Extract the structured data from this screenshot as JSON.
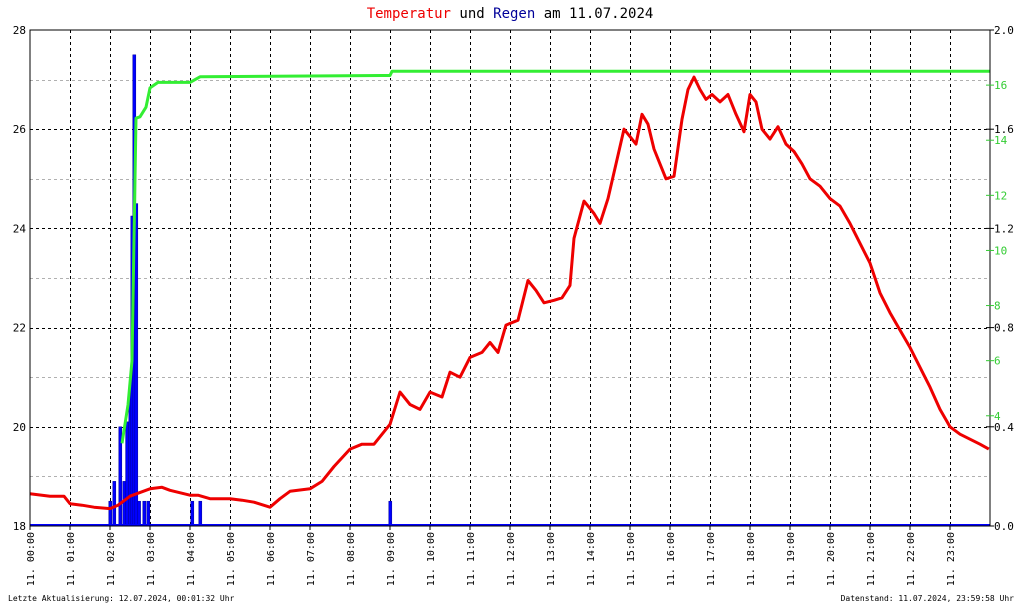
{
  "chart_data": {
    "type": "line",
    "title": {
      "part1": "Temperatur",
      "part2": " und ",
      "part3": "Regen",
      "part4": " am 11.07.2024",
      "color1": "#ee0000",
      "color3": "#000099"
    },
    "x_tick_labels": [
      "11. 00:00",
      "11. 01:00",
      "11. 02:00",
      "11. 03:00",
      "11. 04:00",
      "11. 05:00",
      "11. 06:00",
      "11. 07:00",
      "11. 08:00",
      "11. 09:00",
      "11. 10:00",
      "11. 11:00",
      "11. 12:00",
      "11. 13:00",
      "11. 14:00",
      "11. 15:00",
      "11. 16:00",
      "11. 17:00",
      "11. 18:00",
      "11. 19:00",
      "11. 20:00",
      "11. 21:00",
      "11. 22:00",
      "11. 23:00"
    ],
    "xlim": [
      0,
      24
    ],
    "left_axis": {
      "ylim": [
        18,
        28
      ],
      "ticks": [
        18,
        20,
        22,
        24,
        26,
        28
      ]
    },
    "right_axis_rain": {
      "ylim": [
        0,
        2.0
      ],
      "tick_labels": [
        "0.0",
        "0.4",
        "0.8",
        "1.2",
        "1.6",
        "2.0"
      ]
    },
    "right_axis_sum": {
      "ylim": [
        0,
        18
      ],
      "ticks": [
        4,
        6,
        8,
        10,
        12,
        14,
        16
      ],
      "color": "#33cc33"
    },
    "series": [
      {
        "color": "#ee0000",
        "axis": "left",
        "kind": "line",
        "points": [
          [
            0,
            18.65
          ],
          [
            0.5,
            18.6
          ],
          [
            0.85,
            18.6
          ],
          [
            1,
            18.45
          ],
          [
            1.3,
            18.42
          ],
          [
            1.6,
            18.38
          ],
          [
            2,
            18.35
          ],
          [
            2.2,
            18.42
          ],
          [
            2.5,
            18.6
          ],
          [
            3,
            18.75
          ],
          [
            3.3,
            18.78
          ],
          [
            3.5,
            18.72
          ],
          [
            4,
            18.62
          ],
          [
            4.2,
            18.62
          ],
          [
            4.5,
            18.55
          ],
          [
            5,
            18.55
          ],
          [
            5.3,
            18.52
          ],
          [
            5.6,
            18.48
          ],
          [
            6,
            18.38
          ],
          [
            6.25,
            18.55
          ],
          [
            6.5,
            18.7
          ],
          [
            7,
            18.75
          ],
          [
            7.3,
            18.9
          ],
          [
            7.6,
            19.2
          ],
          [
            8,
            19.55
          ],
          [
            8.3,
            19.65
          ],
          [
            8.6,
            19.65
          ],
          [
            9,
            20.05
          ],
          [
            9.25,
            20.7
          ],
          [
            9.5,
            20.45
          ],
          [
            9.75,
            20.35
          ],
          [
            10,
            20.7
          ],
          [
            10.3,
            20.6
          ],
          [
            10.5,
            21.1
          ],
          [
            10.75,
            21.0
          ],
          [
            11,
            21.4
          ],
          [
            11.3,
            21.5
          ],
          [
            11.5,
            21.7
          ],
          [
            11.7,
            21.5
          ],
          [
            11.9,
            22.05
          ],
          [
            12.2,
            22.15
          ],
          [
            12.45,
            22.95
          ],
          [
            12.65,
            22.75
          ],
          [
            12.85,
            22.5
          ],
          [
            13.1,
            22.55
          ],
          [
            13.3,
            22.6
          ],
          [
            13.5,
            22.85
          ],
          [
            13.6,
            23.8
          ],
          [
            13.85,
            24.55
          ],
          [
            14.1,
            24.3
          ],
          [
            14.25,
            24.1
          ],
          [
            14.45,
            24.6
          ],
          [
            14.65,
            25.3
          ],
          [
            14.85,
            26.0
          ],
          [
            15.0,
            25.85
          ],
          [
            15.15,
            25.7
          ],
          [
            15.3,
            26.3
          ],
          [
            15.45,
            26.1
          ],
          [
            15.6,
            25.6
          ],
          [
            15.75,
            25.3
          ],
          [
            15.9,
            25.0
          ],
          [
            16.1,
            25.05
          ],
          [
            16.3,
            26.2
          ],
          [
            16.45,
            26.8
          ],
          [
            16.6,
            27.05
          ],
          [
            16.75,
            26.8
          ],
          [
            16.9,
            26.6
          ],
          [
            17.05,
            26.7
          ],
          [
            17.25,
            26.55
          ],
          [
            17.45,
            26.7
          ],
          [
            17.65,
            26.3
          ],
          [
            17.85,
            25.95
          ],
          [
            18.0,
            26.7
          ],
          [
            18.15,
            26.55
          ],
          [
            18.3,
            26.0
          ],
          [
            18.5,
            25.8
          ],
          [
            18.7,
            26.05
          ],
          [
            18.9,
            25.7
          ],
          [
            19.1,
            25.55
          ],
          [
            19.3,
            25.3
          ],
          [
            19.5,
            25.0
          ],
          [
            19.75,
            24.85
          ],
          [
            20.0,
            24.6
          ],
          [
            20.25,
            24.45
          ],
          [
            20.5,
            24.1
          ],
          [
            20.75,
            23.7
          ],
          [
            21.0,
            23.3
          ],
          [
            21.25,
            22.7
          ],
          [
            21.5,
            22.3
          ],
          [
            21.75,
            21.95
          ],
          [
            22.0,
            21.6
          ],
          [
            22.25,
            21.2
          ],
          [
            22.5,
            20.8
          ],
          [
            22.75,
            20.35
          ],
          [
            23.0,
            20.0
          ],
          [
            23.25,
            19.85
          ],
          [
            23.5,
            19.75
          ],
          [
            23.75,
            19.65
          ],
          [
            23.97,
            19.55
          ]
        ]
      },
      {
        "color": "#000099",
        "fill": "#0000ff",
        "axis": "right_rain",
        "kind": "bars",
        "bars": [
          [
            2.0,
            0.1
          ],
          [
            2.1,
            0.18
          ],
          [
            2.25,
            0.4
          ],
          [
            2.35,
            0.18
          ],
          [
            2.42,
            0.42
          ],
          [
            2.5,
            0.55
          ],
          [
            2.55,
            1.25
          ],
          [
            2.6,
            1.9
          ],
          [
            2.65,
            1.3
          ],
          [
            2.72,
            0.1
          ],
          [
            2.85,
            0.1
          ],
          [
            2.95,
            0.1
          ],
          [
            4.05,
            0.1
          ],
          [
            4.25,
            0.1
          ],
          [
            9.0,
            0.1
          ]
        ]
      },
      {
        "color": "#33ee33",
        "axis": "right_sum",
        "kind": "line",
        "points": [
          [
            2.3,
            3.0
          ],
          [
            2.45,
            4.4
          ],
          [
            2.55,
            6.0
          ],
          [
            2.65,
            14.8
          ],
          [
            2.75,
            14.85
          ],
          [
            2.9,
            15.2
          ],
          [
            3.0,
            15.9
          ],
          [
            3.2,
            16.1
          ],
          [
            4.0,
            16.1
          ],
          [
            4.25,
            16.3
          ],
          [
            9.0,
            16.35
          ],
          [
            9.05,
            16.5
          ],
          [
            24.0,
            16.5
          ]
        ]
      }
    ]
  },
  "footer": {
    "left": "Letzte Aktualisierung: 12.07.2024, 00:01:32 Uhr",
    "right": "Datenstand: 11.07.2024, 23:59:58 Uhr"
  }
}
